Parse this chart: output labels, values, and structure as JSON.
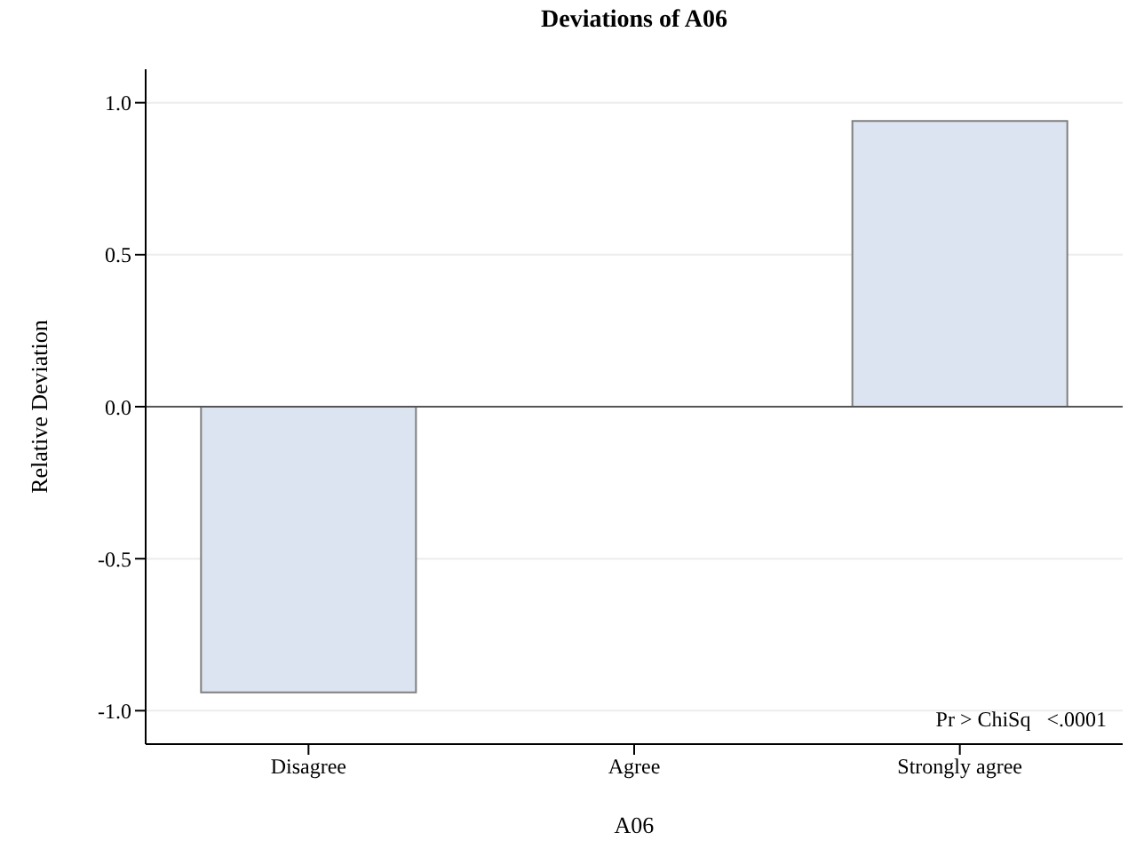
{
  "chart_data": {
    "type": "bar",
    "title": "Deviations of A06",
    "xlabel": "A06",
    "ylabel": "Relative Deviation",
    "categories": [
      "Disagree",
      "Agree",
      "Strongly agree"
    ],
    "values": [
      -0.94,
      0,
      0.94
    ],
    "color": "#dbe4f0",
    "ylim": [
      -1.11,
      1.11
    ],
    "yticks": [
      {
        "value": -1,
        "label": "-1.0"
      },
      {
        "value": -0.5,
        "label": "-0.5"
      },
      {
        "value": 0,
        "label": "0.0"
      },
      {
        "value": 0.5,
        "label": "0.5"
      },
      {
        "value": 1,
        "label": "1.0"
      }
    ],
    "grid": "y",
    "ref_lines": [
      {
        "axis": "y",
        "value": 0,
        "color": "#555555"
      }
    ],
    "annotations": [
      "Pr > ChiSq   <.0001"
    ]
  }
}
